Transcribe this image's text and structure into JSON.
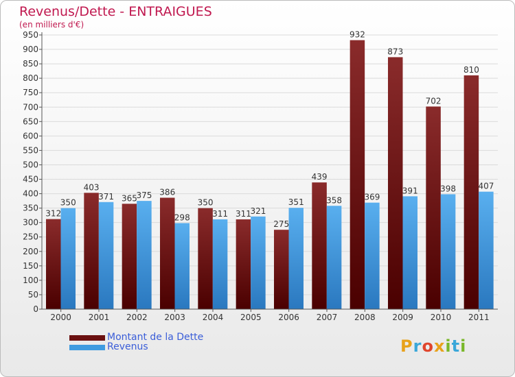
{
  "title": "Revenus/Dette - ENTRAIGUES",
  "subtitle": "(en milliers d'€)",
  "chart_data": {
    "type": "bar",
    "categories": [
      "2000",
      "2001",
      "2002",
      "2003",
      "2004",
      "2005",
      "2006",
      "2007",
      "2008",
      "2009",
      "2010",
      "2011"
    ],
    "series": [
      {
        "name": "Montant de la Dette",
        "values": [
          312,
          403,
          365,
          386,
          350,
          311,
          275,
          439,
          932,
          873,
          702,
          810
        ],
        "color": "#7a1515"
      },
      {
        "name": "Revenus",
        "values": [
          350,
          371,
          375,
          298,
          311,
          321,
          351,
          358,
          369,
          391,
          398,
          407
        ],
        "color": "#3f9be0"
      }
    ],
    "ylim": [
      0,
      950
    ],
    "yticks": [
      0,
      50,
      100,
      150,
      200,
      250,
      300,
      350,
      400,
      450,
      500,
      550,
      600,
      650,
      700,
      750,
      800,
      850,
      900,
      950
    ],
    "grid": true,
    "legend": "bottom-left"
  },
  "logo": {
    "letters": [
      "P",
      "r",
      "o",
      "x",
      "i",
      "t",
      "i"
    ]
  }
}
